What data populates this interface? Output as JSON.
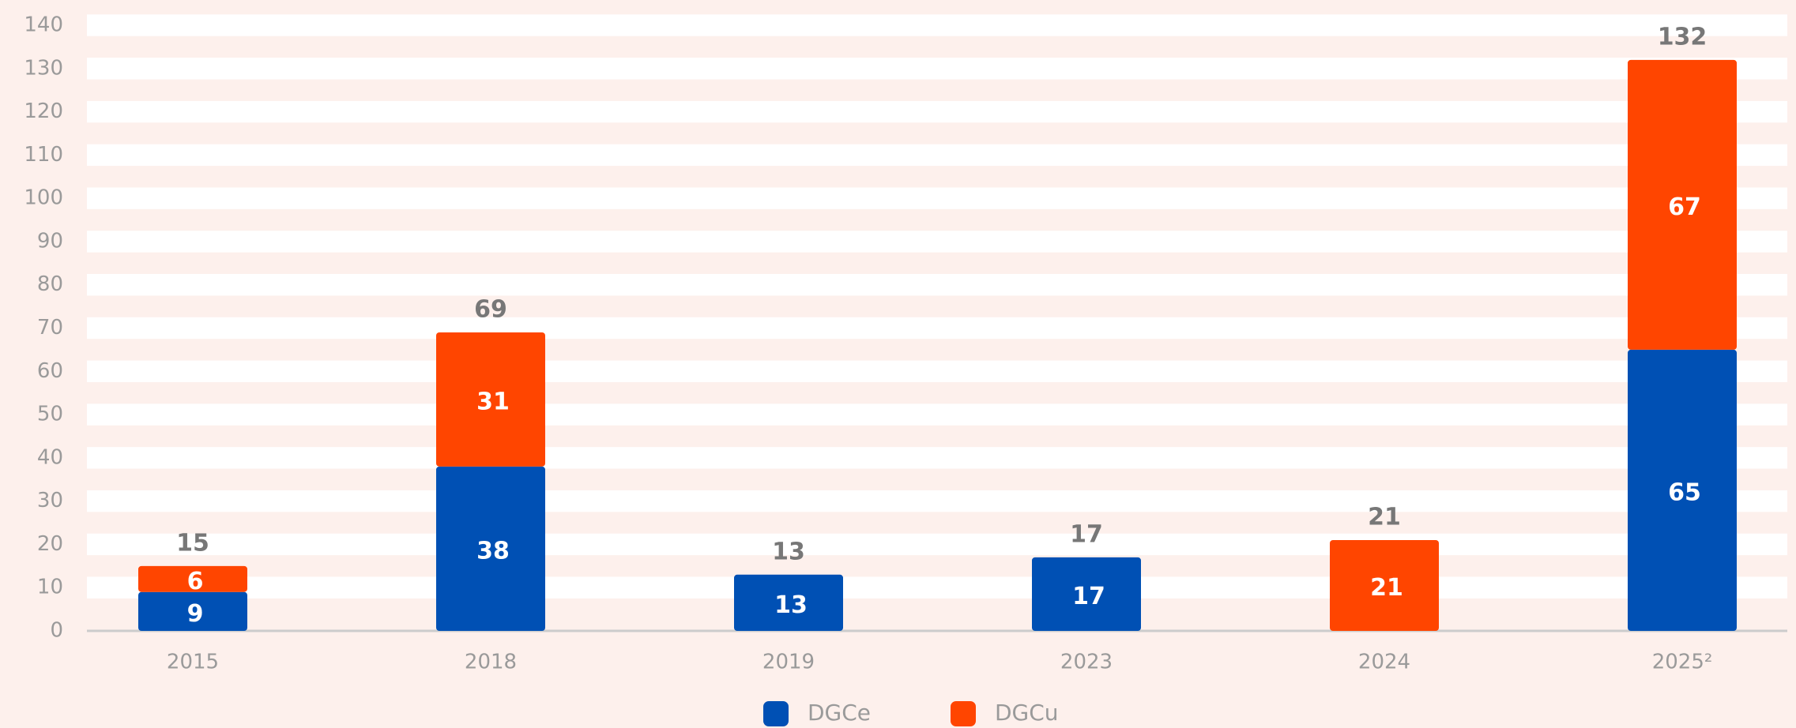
{
  "chart_data": {
    "type": "stacked_bar",
    "categories": [
      "2015",
      "2018",
      "2019",
      "2023",
      "2024",
      "2025²"
    ],
    "series": [
      {
        "name": "DGCe",
        "color": "#0050b4",
        "values": [
          9,
          38,
          13,
          17,
          null,
          65
        ]
      },
      {
        "name": "DGCu",
        "color": "#ff4500",
        "values": [
          6,
          31,
          null,
          null,
          21,
          67
        ]
      }
    ],
    "totals": [
      15,
      69,
      13,
      17,
      21,
      132
    ],
    "ylim": [
      0,
      140
    ],
    "yticks": [
      0,
      10,
      20,
      30,
      40,
      50,
      60,
      70,
      80,
      90,
      100,
      110,
      120,
      130,
      140
    ],
    "grid": true,
    "legend": "bottom"
  }
}
